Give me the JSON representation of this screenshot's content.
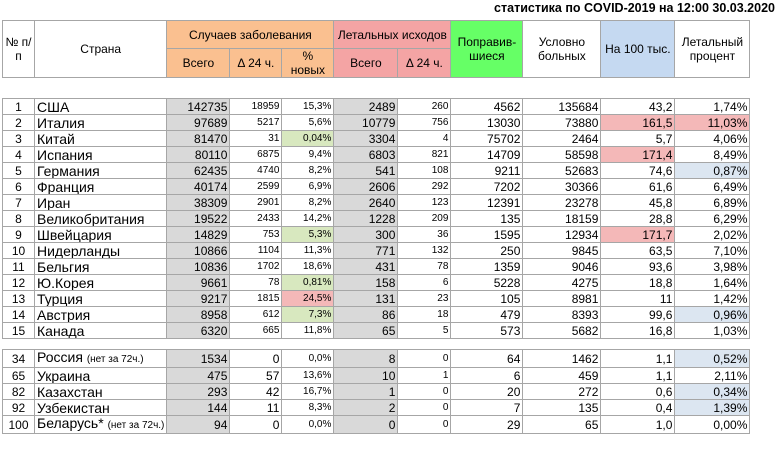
{
  "title": "статистика по COVID-2019 на 12:00 30.03.2020",
  "headers": {
    "num": "№ п/п",
    "country": "Страна",
    "cases": "Случаев заболевания",
    "deaths": "Летальных исходов",
    "recovered": "Поправив-шиеся",
    "sick": "Условно больных",
    "per100k": "На 100 тыс.",
    "lethal": "Летальный процент",
    "total": "Всего",
    "d24": "Δ 24 ч.",
    "pct_new": "% новых"
  },
  "rows": [
    {
      "n": "1",
      "country": "США",
      "cases": "142735",
      "d24": "18959",
      "pct": "15,3%",
      "deaths": "2489",
      "dd24": "260",
      "rec": "4562",
      "sick": "135684",
      "p100": "43,2",
      "lethal": "1,74%"
    },
    {
      "n": "2",
      "country": "Италия",
      "cases": "97689",
      "d24": "5217",
      "pct": "5,6%",
      "deaths": "10779",
      "dd24": "756",
      "rec": "13030",
      "sick": "73880",
      "p100": "161,5",
      "lethal": "11,03%"
    },
    {
      "n": "3",
      "country": "Китай",
      "cases": "81470",
      "d24": "31",
      "pct": "0,04%",
      "deaths": "3304",
      "dd24": "4",
      "rec": "75702",
      "sick": "2464",
      "p100": "5,7",
      "lethal": "4,06%"
    },
    {
      "n": "4",
      "country": "Испания",
      "cases": "80110",
      "d24": "6875",
      "pct": "9,4%",
      "deaths": "6803",
      "dd24": "821",
      "rec": "14709",
      "sick": "58598",
      "p100": "171,4",
      "lethal": "8,49%"
    },
    {
      "n": "5",
      "country": "Германия",
      "cases": "62435",
      "d24": "4740",
      "pct": "8,2%",
      "deaths": "541",
      "dd24": "108",
      "rec": "9211",
      "sick": "52683",
      "p100": "74,6",
      "lethal": "0,87%"
    },
    {
      "n": "6",
      "country": "Франция",
      "cases": "40174",
      "d24": "2599",
      "pct": "6,9%",
      "deaths": "2606",
      "dd24": "292",
      "rec": "7202",
      "sick": "30366",
      "p100": "61,6",
      "lethal": "6,49%"
    },
    {
      "n": "7",
      "country": "Иран",
      "cases": "38309",
      "d24": "2901",
      "pct": "8,2%",
      "deaths": "2640",
      "dd24": "123",
      "rec": "12391",
      "sick": "23278",
      "p100": "45,8",
      "lethal": "6,89%"
    },
    {
      "n": "8",
      "country": "Великобритания",
      "cases": "19522",
      "d24": "2433",
      "pct": "14,2%",
      "deaths": "1228",
      "dd24": "209",
      "rec": "135",
      "sick": "18159",
      "p100": "28,8",
      "lethal": "6,29%"
    },
    {
      "n": "9",
      "country": "Швейцария",
      "cases": "14829",
      "d24": "753",
      "pct": "5,3%",
      "deaths": "300",
      "dd24": "36",
      "rec": "1595",
      "sick": "12934",
      "p100": "171,7",
      "lethal": "2,02%"
    },
    {
      "n": "10",
      "country": "Нидерланды",
      "cases": "10866",
      "d24": "1104",
      "pct": "11,3%",
      "deaths": "771",
      "dd24": "132",
      "rec": "250",
      "sick": "9845",
      "p100": "63,5",
      "lethal": "7,10%"
    },
    {
      "n": "11",
      "country": "Бельгия",
      "cases": "10836",
      "d24": "1702",
      "pct": "18,6%",
      "deaths": "431",
      "dd24": "78",
      "rec": "1359",
      "sick": "9046",
      "p100": "93,6",
      "lethal": "3,98%"
    },
    {
      "n": "12",
      "country": "Ю.Корея",
      "cases": "9661",
      "d24": "78",
      "pct": "0,81%",
      "deaths": "158",
      "dd24": "6",
      "rec": "5228",
      "sick": "4275",
      "p100": "18,8",
      "lethal": "1,64%"
    },
    {
      "n": "13",
      "country": "Турция",
      "cases": "9217",
      "d24": "1815",
      "pct": "24,5%",
      "deaths": "131",
      "dd24": "23",
      "rec": "105",
      "sick": "8981",
      "p100": "11",
      "lethal": "1,42%"
    },
    {
      "n": "14",
      "country": "Австрия",
      "cases": "8958",
      "d24": "612",
      "pct": "7,3%",
      "deaths": "86",
      "dd24": "18",
      "rec": "479",
      "sick": "8393",
      "p100": "99,6",
      "lethal": "0,96%"
    },
    {
      "n": "15",
      "country": "Канада",
      "cases": "6320",
      "d24": "665",
      "pct": "11,8%",
      "deaths": "65",
      "dd24": "5",
      "rec": "573",
      "sick": "5682",
      "p100": "16,8",
      "lethal": "1,03%"
    }
  ],
  "rows2": [
    {
      "n": "34",
      "country": "Россия",
      "note": "(нет за 72ч.)",
      "cases": "1534",
      "d24": "0",
      "pct": "0,0%",
      "deaths": "8",
      "dd24": "0",
      "rec": "64",
      "sick": "1462",
      "p100": "1,1",
      "lethal": "0,52%"
    },
    {
      "n": "65",
      "country": "Украина",
      "note": "",
      "cases": "475",
      "d24": "57",
      "pct": "13,6%",
      "deaths": "10",
      "dd24": "1",
      "rec": "6",
      "sick": "459",
      "p100": "1,1",
      "lethal": "2,11%"
    },
    {
      "n": "82",
      "country": "Казахстан",
      "note": "",
      "cases": "293",
      "d24": "42",
      "pct": "16,7%",
      "deaths": "1",
      "dd24": "0",
      "rec": "20",
      "sick": "272",
      "p100": "0,6",
      "lethal": "0,34%"
    },
    {
      "n": "92",
      "country": "Узбекистан",
      "note": "",
      "cases": "144",
      "d24": "11",
      "pct": "8,3%",
      "deaths": "2",
      "dd24": "0",
      "rec": "7",
      "sick": "135",
      "p100": "0,4",
      "lethal": "1,39%"
    },
    {
      "n": "100",
      "country": "Беларусь*",
      "note": "(нет за 72ч.)",
      "cases": "94",
      "d24": "0",
      "pct": "0,0%",
      "deaths": "0",
      "dd24": "0",
      "rec": "29",
      "sick": "65",
      "p100": "1,0",
      "lethal": "0,00%"
    }
  ]
}
